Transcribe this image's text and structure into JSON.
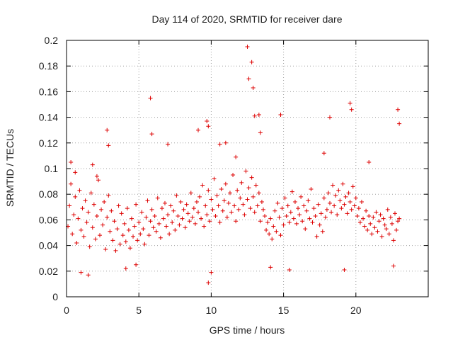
{
  "chart_data": {
    "type": "scatter",
    "title": "Day 114 of 2020, SRMTID for receiver dare",
    "xlabel": "GPS time / hours",
    "ylabel": "SRMTID / TECUs",
    "xlim": [
      0,
      25
    ],
    "ylim": [
      0,
      0.2
    ],
    "xticks": [
      0,
      5,
      10,
      15,
      20
    ],
    "xtick_labels": [
      "0",
      "5",
      "10",
      "15",
      "20"
    ],
    "yticks": [
      0,
      0.02,
      0.04,
      0.06,
      0.08,
      0.1,
      0.12,
      0.14,
      0.16,
      0.18,
      0.2
    ],
    "ytick_labels": [
      "0",
      "0.02",
      "0.04",
      "0.06",
      "0.08",
      "0.1",
      "0.12",
      "0.14",
      "0.16",
      "0.18",
      "0.2"
    ],
    "grid": true,
    "marker": "+",
    "marker_color": "#dd0000",
    "series": [
      {
        "name": "SRMTID",
        "x": [
          0.1,
          0.2,
          0.3,
          0.4,
          0.5,
          0.6,
          0.7,
          0.8,
          0.9,
          1.0,
          1.1,
          1.2,
          1.3,
          1.4,
          1.5,
          1.6,
          1.7,
          1.8,
          1.9,
          2.0,
          2.1,
          2.2,
          2.3,
          2.4,
          2.5,
          2.6,
          2.7,
          2.8,
          2.9,
          3.0,
          3.1,
          3.2,
          3.3,
          3.4,
          3.5,
          3.6,
          3.7,
          3.8,
          3.9,
          4.0,
          4.1,
          4.2,
          4.3,
          4.4,
          4.5,
          4.6,
          4.7,
          4.8,
          4.9,
          5.0,
          5.1,
          5.2,
          5.3,
          5.4,
          5.5,
          5.6,
          5.7,
          5.8,
          5.9,
          6.0,
          6.1,
          6.2,
          6.3,
          6.4,
          6.5,
          6.6,
          6.7,
          6.8,
          6.9,
          7.0,
          7.1,
          7.2,
          7.3,
          7.4,
          7.5,
          7.6,
          7.7,
          7.8,
          7.9,
          8.0,
          8.1,
          8.2,
          8.3,
          8.4,
          8.5,
          8.6,
          8.7,
          8.8,
          8.9,
          9.0,
          9.1,
          9.2,
          9.3,
          9.4,
          9.5,
          9.6,
          9.7,
          9.8,
          9.9,
          10.0,
          10.1,
          10.2,
          10.3,
          10.4,
          10.5,
          10.6,
          10.7,
          10.8,
          10.9,
          11.0,
          11.1,
          11.2,
          11.3,
          11.4,
          11.5,
          11.6,
          11.7,
          11.8,
          11.9,
          12.0,
          12.1,
          12.2,
          12.3,
          12.4,
          12.5,
          12.6,
          12.7,
          12.8,
          12.9,
          13.0,
          13.1,
          13.2,
          13.3,
          13.4,
          13.5,
          13.6,
          13.7,
          13.8,
          13.9,
          14.0,
          14.1,
          14.2,
          14.3,
          14.4,
          14.5,
          14.6,
          14.7,
          14.8,
          14.9,
          15.0,
          15.1,
          15.2,
          15.3,
          15.4,
          15.5,
          15.6,
          15.7,
          15.8,
          15.9,
          16.0,
          16.1,
          16.2,
          16.3,
          16.4,
          16.5,
          16.6,
          16.7,
          16.8,
          16.9,
          17.0,
          17.1,
          17.2,
          17.3,
          17.4,
          17.5,
          17.6,
          17.7,
          17.8,
          17.9,
          18.0,
          18.1,
          18.2,
          18.3,
          18.4,
          18.5,
          18.6,
          18.7,
          18.8,
          18.9,
          19.0,
          19.1,
          19.2,
          19.3,
          19.4,
          19.5,
          19.6,
          19.7,
          19.8,
          19.9,
          20.0,
          20.1,
          20.2,
          20.3,
          20.4,
          20.5,
          20.6,
          20.7,
          20.8,
          20.9,
          21.0,
          21.1,
          21.2,
          21.3,
          21.4,
          21.5,
          21.6,
          21.7,
          21.8,
          21.9,
          22.0,
          22.1,
          22.2,
          22.3,
          22.4,
          22.5,
          22.6,
          22.7,
          22.8,
          22.9,
          23.0,
          0.3,
          0.6,
          1.8,
          2.1,
          2.8,
          2.9,
          5.8,
          5.9,
          7.0,
          9.1,
          9.7,
          9.8,
          12.5,
          12.6,
          12.8,
          12.9,
          13.0,
          13.3,
          13.4,
          14.8,
          17.8,
          19.6,
          19.7,
          22.9,
          23.0,
          1.0,
          1.5,
          4.1,
          4.8,
          9.8,
          10.0,
          14.1,
          15.4,
          19.2,
          22.6,
          10.6,
          11.0,
          11.7,
          18.2,
          20.9
        ],
        "y": [
          0.055,
          0.071,
          0.088,
          0.049,
          0.064,
          0.078,
          0.042,
          0.061,
          0.083,
          0.052,
          0.069,
          0.047,
          0.075,
          0.058,
          0.066,
          0.039,
          0.081,
          0.054,
          0.072,
          0.045,
          0.063,
          0.091,
          0.048,
          0.068,
          0.056,
          0.074,
          0.037,
          0.062,
          0.079,
          0.051,
          0.067,
          0.044,
          0.059,
          0.036,
          0.053,
          0.071,
          0.041,
          0.065,
          0.048,
          0.057,
          0.043,
          0.069,
          0.052,
          0.038,
          0.061,
          0.047,
          0.055,
          0.072,
          0.044,
          0.058,
          0.049,
          0.066,
          0.053,
          0.041,
          0.062,
          0.075,
          0.048,
          0.059,
          0.068,
          0.054,
          0.063,
          0.051,
          0.077,
          0.057,
          0.046,
          0.069,
          0.061,
          0.073,
          0.055,
          0.064,
          0.049,
          0.071,
          0.058,
          0.067,
          0.052,
          0.079,
          0.063,
          0.056,
          0.074,
          0.061,
          0.068,
          0.054,
          0.072,
          0.065,
          0.059,
          0.081,
          0.062,
          0.069,
          0.057,
          0.074,
          0.066,
          0.078,
          0.061,
          0.087,
          0.055,
          0.071,
          0.064,
          0.083,
          0.059,
          0.076,
          0.068,
          0.092,
          0.063,
          0.079,
          0.071,
          0.058,
          0.084,
          0.067,
          0.075,
          0.088,
          0.062,
          0.073,
          0.081,
          0.066,
          0.095,
          0.071,
          0.059,
          0.083,
          0.068,
          0.077,
          0.089,
          0.072,
          0.064,
          0.098,
          0.076,
          0.085,
          0.069,
          0.093,
          0.078,
          0.066,
          0.087,
          0.071,
          0.081,
          0.059,
          0.074,
          0.068,
          0.063,
          0.052,
          0.058,
          0.049,
          0.061,
          0.045,
          0.055,
          0.067,
          0.051,
          0.073,
          0.062,
          0.048,
          0.069,
          0.056,
          0.077,
          0.063,
          0.071,
          0.058,
          0.066,
          0.082,
          0.061,
          0.074,
          0.057,
          0.069,
          0.064,
          0.078,
          0.059,
          0.071,
          0.053,
          0.067,
          0.075,
          0.061,
          0.084,
          0.058,
          0.069,
          0.063,
          0.047,
          0.072,
          0.056,
          0.065,
          0.051,
          0.077,
          0.062,
          0.068,
          0.081,
          0.073,
          0.066,
          0.087,
          0.071,
          0.079,
          0.064,
          0.083,
          0.075,
          0.069,
          0.088,
          0.072,
          0.078,
          0.065,
          0.081,
          0.074,
          0.068,
          0.086,
          0.071,
          0.077,
          0.063,
          0.069,
          0.058,
          0.074,
          0.061,
          0.055,
          0.067,
          0.052,
          0.063,
          0.057,
          0.049,
          0.062,
          0.054,
          0.066,
          0.051,
          0.059,
          0.064,
          0.047,
          0.061,
          0.056,
          0.053,
          0.068,
          0.049,
          0.062,
          0.057,
          0.044,
          0.065,
          0.052,
          0.059,
          0.061,
          0.105,
          0.097,
          0.103,
          0.094,
          0.13,
          0.118,
          0.155,
          0.127,
          0.119,
          0.13,
          0.137,
          0.133,
          0.195,
          0.17,
          0.183,
          0.163,
          0.141,
          0.142,
          0.128,
          0.142,
          0.112,
          0.151,
          0.146,
          0.146,
          0.135,
          0.019,
          0.017,
          0.022,
          0.025,
          0.011,
          0.019,
          0.023,
          0.021,
          0.021,
          0.024,
          0.119,
          0.12,
          0.109,
          0.14,
          0.105
        ]
      }
    ]
  }
}
